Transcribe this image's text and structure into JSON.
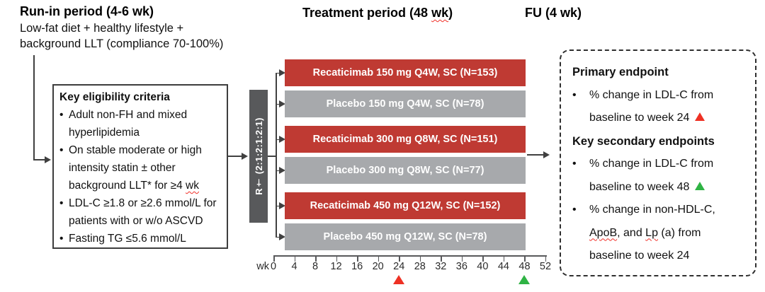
{
  "header": {
    "runin_title": "Run-in period (4-6 wk)",
    "runin_sub_line1": "Low-fat diet + healthy lifestyle +",
    "runin_sub_line2": "background LLT (compliance 70-100%)",
    "treatment_title_pre": "Treatment period (48 ",
    "treatment_title_squiggle": "wk",
    "treatment_title_post": ")",
    "fu_title": "FU (4 wk)"
  },
  "chars": {
    "bullet": "•"
  },
  "eligibility": {
    "title": "Key eligibility criteria",
    "bullet1": {
      "l1": "Adult non-FH and mixed",
      "l2": "hyperlipidemia"
    },
    "bullet2": {
      "l1": "On stable moderate or high",
      "l2": "intensity statin ± other",
      "l3a": "background LLT* for ≥4 ",
      "l3b": "wk"
    },
    "bullet3": {
      "l1": "LDL-C ≥1.8 or ≥2.6 mmol/L for",
      "l2": "patients with or w/o ASCVD"
    },
    "bullet4": {
      "l1": "Fasting TG ≤5.6 mmol/L"
    }
  },
  "randomization": {
    "label": "R† (2:1:2:1:2:1)"
  },
  "arms": [
    {
      "label": "Recaticimab 150 mg Q4W, SC (N=153)",
      "type": "active"
    },
    {
      "label": "Placebo 150 mg Q4W, SC (N=78)",
      "type": "placebo"
    },
    {
      "label": "Recaticimab 300 mg Q8W, SC (N=151)",
      "type": "active"
    },
    {
      "label": "Placebo 300 mg Q8W, SC (N=77)",
      "type": "placebo"
    },
    {
      "label": "Recaticimab 450 mg Q12W, SC (N=152)",
      "type": "active"
    },
    {
      "label": "Placebo 450 mg Q12W, SC (N=78)",
      "type": "placebo"
    }
  ],
  "timeline": {
    "unit_label": "wk",
    "ticks": [
      "0",
      "4",
      "8",
      "12",
      "16",
      "20",
      "24",
      "28",
      "32",
      "36",
      "40",
      "44",
      "48",
      "52"
    ],
    "primary_marker_week": 24,
    "secondary_marker_week": 48,
    "marker_primary_color": "#ee3124",
    "marker_secondary_color": "#2fb344"
  },
  "endpoints": {
    "primary": {
      "title": "Primary endpoint",
      "item": {
        "l1": "% change in LDL-C from",
        "l2": "baseline to week 24"
      }
    },
    "secondary": {
      "title": "Key secondary endpoints",
      "item1": {
        "l1": "% change in LDL-C from",
        "l2": "baseline to week 48"
      },
      "item2": {
        "l1": "% change in non-HDL-C,",
        "l2a": "ApoB",
        "l2b": ", and ",
        "l2c": "Lp",
        "l2d": " (a) from",
        "l3": "baseline to week 24"
      }
    }
  },
  "colors": {
    "arm_active": "#bf3a33",
    "arm_placebo": "#a7a9ac",
    "randomization_bar": "#58595b",
    "marker_primary": "#ee3124",
    "marker_secondary": "#2fb344",
    "connector": "#404040",
    "squiggle": "#f03028"
  }
}
